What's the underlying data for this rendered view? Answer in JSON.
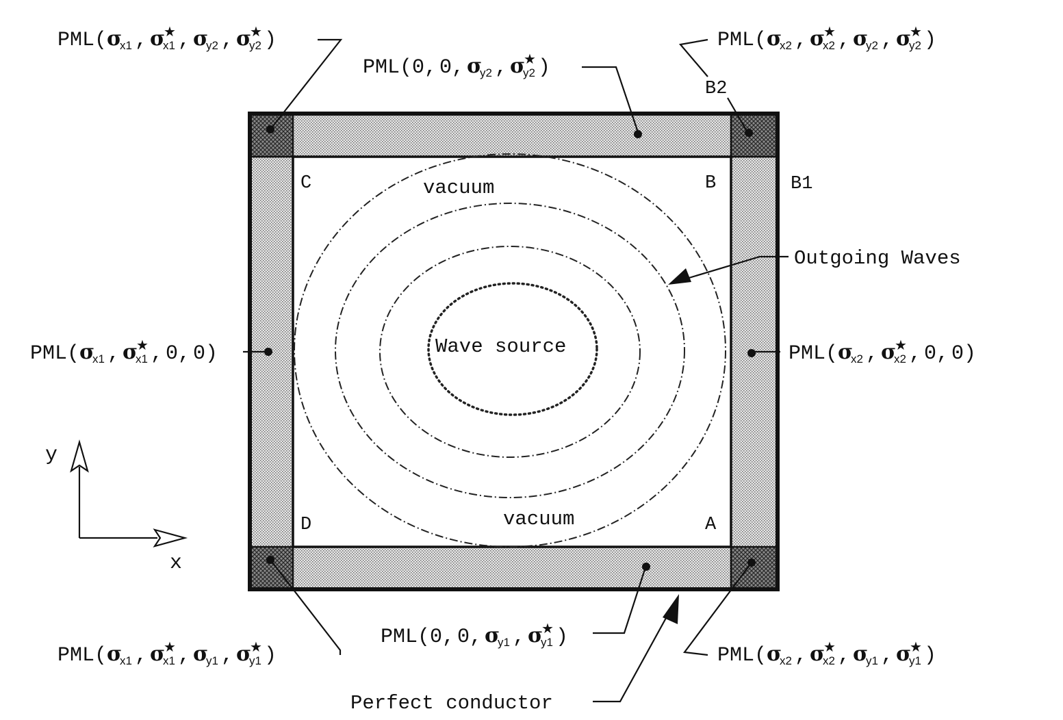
{
  "regions": {
    "vacuum_top": "vacuum",
    "vacuum_bottom": "vacuum",
    "wave_source": "Wave source"
  },
  "corners": {
    "A": "A",
    "B": "B",
    "C": "C",
    "D": "D",
    "B1": "B1",
    "B2": "B2"
  },
  "callouts": {
    "outgoing_waves": "Outgoing Waves",
    "perfect_conductor": "Perfect conductor"
  },
  "pml_labels": {
    "prefix": "PML",
    "zero": "0",
    "sigma": "σ",
    "star": "★",
    "x1": "x1",
    "x2": "x2",
    "y1": "y1",
    "y2": "y2"
  },
  "axes": {
    "x_label": "x",
    "y_label": "y"
  },
  "colors": {
    "ink": "#111111",
    "pml_fill": "#c8c8c8",
    "corner_fill": "#707070"
  }
}
